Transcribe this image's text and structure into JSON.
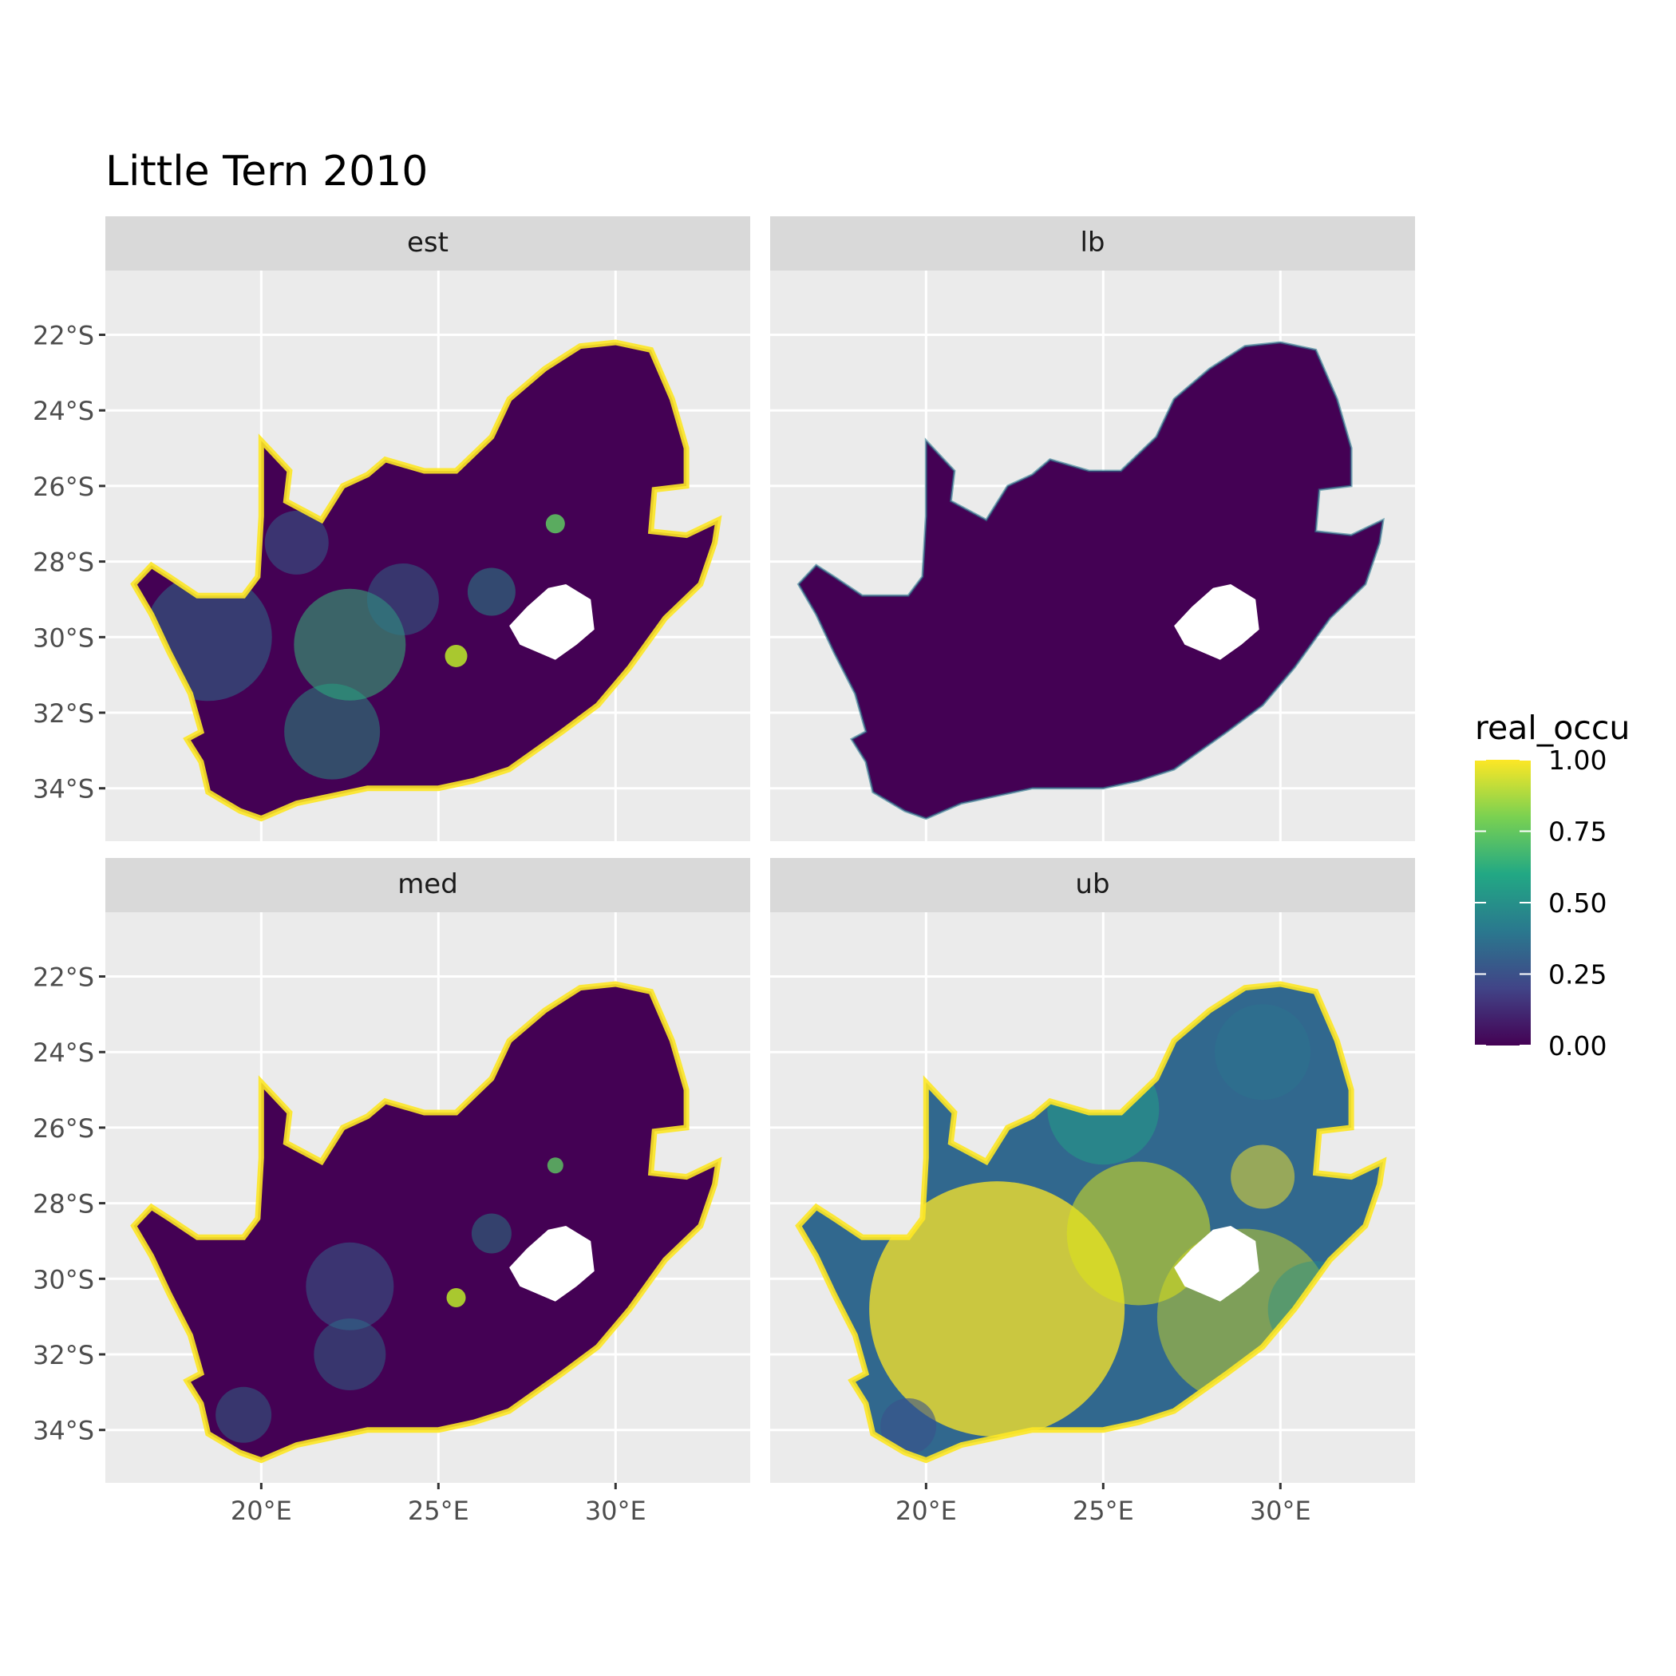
{
  "title": "Little Tern 2010",
  "panels": [
    {
      "label": "est",
      "style": "est"
    },
    {
      "label": "lb",
      "style": "lb"
    },
    {
      "label": "med",
      "style": "med"
    },
    {
      "label": "ub",
      "style": "ub"
    }
  ],
  "axes": {
    "x_ticks": [
      "20°E",
      "25°E",
      "30°E"
    ],
    "y_ticks": [
      "22°S",
      "24°S",
      "26°S",
      "28°S",
      "30°S",
      "32°S",
      "34°S"
    ]
  },
  "legend": {
    "title": "real_occu",
    "ticks": [
      "1.00",
      "0.75",
      "0.50",
      "0.25",
      "0.00"
    ],
    "colors": [
      "#fde725",
      "#7ad151",
      "#22a884",
      "#2a788e",
      "#414487",
      "#440154"
    ]
  },
  "colors": {
    "panel_background": "#ebebeb",
    "strip_background": "#d9d9d9",
    "grid": "#ffffff",
    "land_low": "#440154",
    "land_high": "#fde725"
  }
}
